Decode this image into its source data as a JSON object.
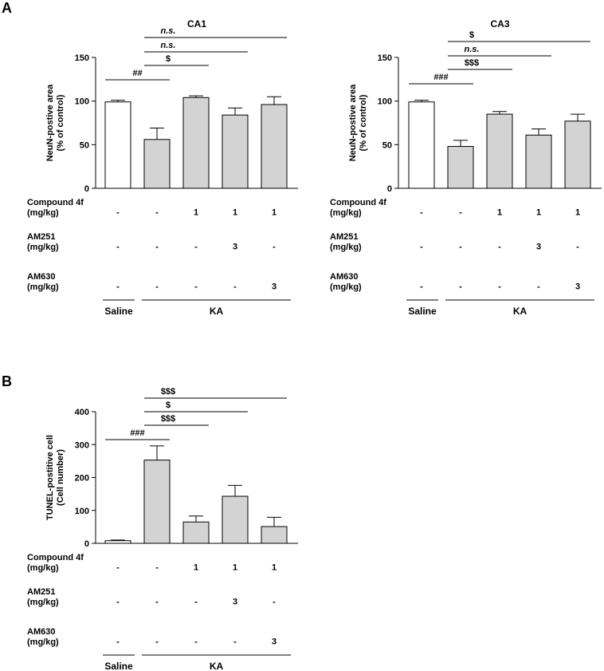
{
  "panel_letters": [
    "A",
    "B"
  ],
  "chart_data": [
    {
      "type": "bar",
      "panel": "A",
      "title": "CA1",
      "ylabel": [
        "NeuN-postive area",
        "(% of control)"
      ],
      "ylim": [
        0,
        150
      ],
      "yticks": [
        0,
        50,
        100,
        150
      ],
      "series": [
        {
          "values": [
            99,
            56,
            104,
            84,
            96
          ],
          "errors": [
            2,
            13,
            2,
            8,
            9
          ],
          "fills": [
            "#ffffff",
            "#d3d3d3",
            "#d3d3d3",
            "#d3d3d3",
            "#d3d3d3"
          ]
        }
      ],
      "comparisons": [
        {
          "from": 0,
          "to": 1,
          "label": "##",
          "italic": false
        },
        {
          "from": 1,
          "to": 2,
          "label": "$",
          "italic": false
        },
        {
          "from": 1,
          "to": 3,
          "label": "n.s.",
          "italic": true
        },
        {
          "from": 1,
          "to": 4,
          "label": "n.s.",
          "italic": true
        }
      ],
      "table": [
        {
          "name": [
            "Compound 4f",
            "(mg/kg)"
          ],
          "values": [
            "-",
            "-",
            "1",
            "1",
            "1"
          ]
        },
        {
          "name": [
            "AM251",
            "(mg/kg)"
          ],
          "values": [
            "-",
            "-",
            "-",
            "3",
            "-"
          ]
        },
        {
          "name": [
            "AM630",
            "(mg/kg)"
          ],
          "values": [
            "-",
            "-",
            "-",
            "-",
            "3"
          ]
        }
      ],
      "groups": [
        {
          "label": "Saline",
          "from": 0,
          "to": 0
        },
        {
          "label": "KA",
          "from": 1,
          "to": 4
        }
      ]
    },
    {
      "type": "bar",
      "panel": "A",
      "title": "CA3",
      "ylabel": [
        "NeuN-postive area",
        "(% of control)"
      ],
      "ylim": [
        0,
        150
      ],
      "yticks": [
        0,
        50,
        100,
        150
      ],
      "series": [
        {
          "values": [
            99,
            48,
            85,
            61,
            77
          ],
          "errors": [
            2,
            7,
            3,
            7,
            8
          ],
          "fills": [
            "#ffffff",
            "#d3d3d3",
            "#d3d3d3",
            "#d3d3d3",
            "#d3d3d3"
          ]
        }
      ],
      "comparisons": [
        {
          "from": 0,
          "to": 1,
          "label": "###",
          "italic": false
        },
        {
          "from": 1,
          "to": 2,
          "label": "$$$",
          "italic": false
        },
        {
          "from": 1,
          "to": 3,
          "label": "n.s.",
          "italic": true
        },
        {
          "from": 1,
          "to": 4,
          "label": "$",
          "italic": false
        }
      ],
      "table": [
        {
          "name": [
            "Compound 4f",
            "(mg/kg)"
          ],
          "values": [
            "-",
            "-",
            "1",
            "1",
            "1"
          ]
        },
        {
          "name": [
            "AM251",
            "(mg/kg)"
          ],
          "values": [
            "-",
            "-",
            "-",
            "3",
            "-"
          ]
        },
        {
          "name": [
            "AM630",
            "(mg/kg)"
          ],
          "values": [
            "-",
            "-",
            "-",
            "-",
            "3"
          ]
        }
      ],
      "groups": [
        {
          "label": "Saline",
          "from": 0,
          "to": 0
        },
        {
          "label": "KA",
          "from": 1,
          "to": 4
        }
      ]
    },
    {
      "type": "bar",
      "panel": "B",
      "title": "",
      "ylabel": [
        "TUNEL-postitive cell",
        "(Cell number)"
      ],
      "ylim": [
        0,
        400
      ],
      "yticks": [
        0,
        100,
        200,
        300,
        400
      ],
      "series": [
        {
          "values": [
            8,
            253,
            65,
            143,
            51
          ],
          "errors": [
            2,
            43,
            18,
            33,
            28
          ],
          "fills": [
            "#ffffff",
            "#d3d3d3",
            "#d3d3d3",
            "#d3d3d3",
            "#d3d3d3"
          ]
        }
      ],
      "comparisons": [
        {
          "from": 0,
          "to": 1,
          "label": "###",
          "italic": false
        },
        {
          "from": 1,
          "to": 2,
          "label": "$$$",
          "italic": false
        },
        {
          "from": 1,
          "to": 3,
          "label": "$",
          "italic": false
        },
        {
          "from": 1,
          "to": 4,
          "label": "$$$",
          "italic": false
        }
      ],
      "table": [
        {
          "name": [
            "Compound 4f",
            "(mg/kg)"
          ],
          "values": [
            "-",
            "-",
            "1",
            "1",
            "1"
          ]
        },
        {
          "name": [
            "AM251",
            "(mg/kg)"
          ],
          "values": [
            "-",
            "-",
            "-",
            "3",
            "-"
          ]
        },
        {
          "name": [
            "AM630",
            "(mg/kg)"
          ],
          "values": [
            "-",
            "-",
            "-",
            "-",
            "3"
          ]
        }
      ],
      "groups": [
        {
          "label": "Saline",
          "from": 0,
          "to": 0
        },
        {
          "label": "KA",
          "from": 1,
          "to": 4
        }
      ]
    }
  ]
}
